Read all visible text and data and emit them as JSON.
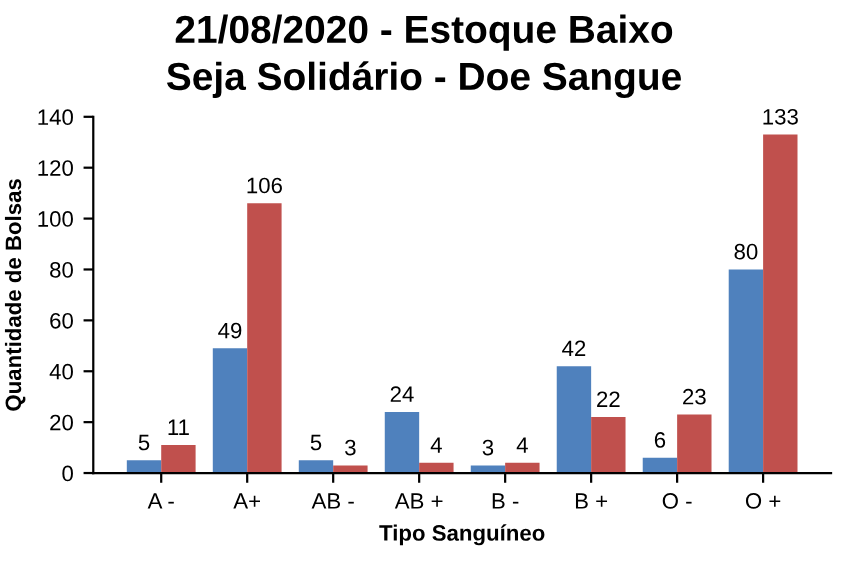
{
  "chart_data": {
    "type": "bar",
    "title": "21/08/2020 - Estoque Baixo",
    "subtitle": "Seja Solidário - Doe Sangue",
    "xlabel": "Tipo Sanguíneo",
    "ylabel": "Quantidade de Bolsas",
    "categories": [
      "A -",
      "A+",
      "AB -",
      "AB +",
      "B -",
      "B +",
      "O -",
      "O +"
    ],
    "series": [
      {
        "color": "#4f81bd",
        "values": [
          5,
          49,
          5,
          24,
          3,
          42,
          6,
          80
        ]
      },
      {
        "color": "#c0504d",
        "values": [
          11,
          106,
          3,
          4,
          4,
          22,
          23,
          133
        ]
      }
    ],
    "ylim": [
      0,
      140
    ],
    "yticks": [
      0,
      20,
      40,
      60,
      80,
      100,
      120,
      140
    ],
    "grid": false,
    "legend": false,
    "data_labels": true
  }
}
